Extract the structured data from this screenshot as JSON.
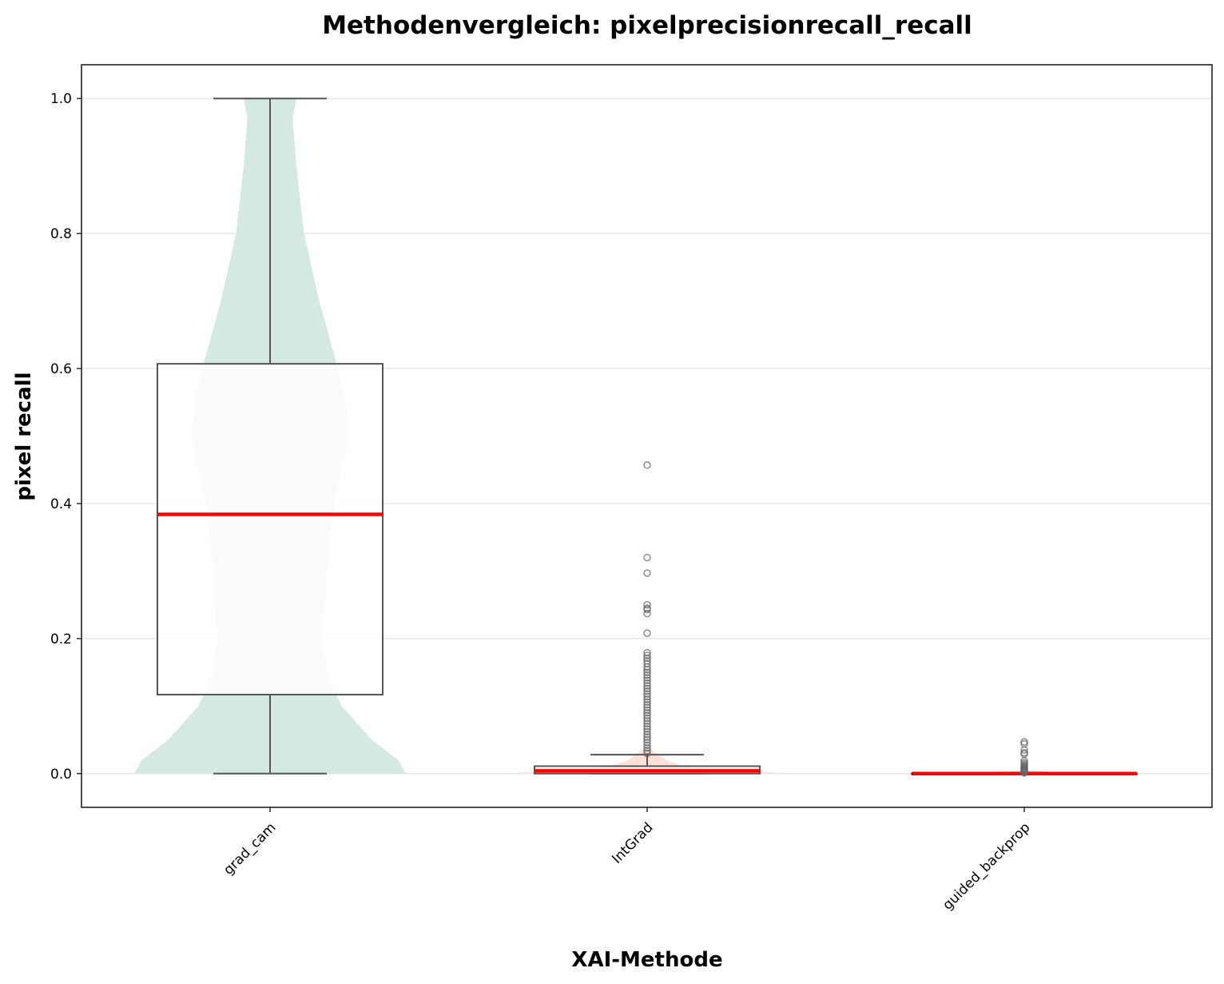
{
  "chart_data": {
    "type": "violin+box",
    "title": "Methodenvergleich: pixelprecisionrecall_recall",
    "xlabel": "XAI-Methode",
    "ylabel": "pixel recall",
    "ylim": [
      -0.05,
      1.05
    ],
    "yticks": [
      "0.0",
      "0.2",
      "0.4",
      "0.6",
      "0.8",
      "1.0"
    ],
    "ytick_values": [
      0.0,
      0.2,
      0.4,
      0.6,
      0.8,
      1.0
    ],
    "grid": "horizontal",
    "categories": [
      "grad_cam",
      "IntGrad",
      "guided_backprop"
    ],
    "colors": {
      "median": "#ff0000",
      "box_edge": "#555555",
      "gridline": "#e6e6e6",
      "violins": [
        "#d4e9e2",
        "#fde0d6",
        "#dfe4ef"
      ],
      "outlier": "#666666"
    },
    "series": [
      {
        "category": "grad_cam",
        "q1": 0.117,
        "median": 0.384,
        "q3": 0.607,
        "whisker_low": 0.0,
        "whisker_high": 1.0,
        "outliers": [],
        "violin": [
          [
            0.0,
            0.36
          ],
          [
            0.02,
            0.34
          ],
          [
            0.05,
            0.27
          ],
          [
            0.1,
            0.19
          ],
          [
            0.15,
            0.15
          ],
          [
            0.2,
            0.14
          ],
          [
            0.3,
            0.15
          ],
          [
            0.4,
            0.17
          ],
          [
            0.5,
            0.21
          ],
          [
            0.55,
            0.2
          ],
          [
            0.6,
            0.18
          ],
          [
            0.7,
            0.13
          ],
          [
            0.8,
            0.09
          ],
          [
            0.9,
            0.07
          ],
          [
            0.97,
            0.06
          ],
          [
            1.0,
            0.07
          ]
        ]
      },
      {
        "category": "IntGrad",
        "q1": 0.0,
        "median": 0.004,
        "q3": 0.011,
        "whisker_low": 0.0,
        "whisker_high": 0.028,
        "outliers": [
          0.457,
          0.32,
          0.297,
          0.25,
          0.245,
          0.243,
          0.237,
          0.208,
          0.179,
          0.175,
          0.171,
          0.167,
          0.163,
          0.158,
          0.154,
          0.15,
          0.146,
          0.142,
          0.138,
          0.134,
          0.13,
          0.126,
          0.122,
          0.118,
          0.114,
          0.11,
          0.106,
          0.102,
          0.098,
          0.094,
          0.09,
          0.086,
          0.082,
          0.078,
          0.074,
          0.07,
          0.066,
          0.062,
          0.058,
          0.054,
          0.05,
          0.046,
          0.042,
          0.038,
          0.034,
          0.03
        ],
        "violin": [
          [
            0.0,
            0.37
          ],
          [
            0.003,
            0.3
          ],
          [
            0.007,
            0.16
          ],
          [
            0.012,
            0.09
          ],
          [
            0.02,
            0.05
          ],
          [
            0.03,
            0.025
          ],
          [
            0.04,
            0.0
          ]
        ]
      },
      {
        "category": "guided_backprop",
        "q1": 0.0,
        "median": 0.0,
        "q3": 0.0,
        "whisker_low": 0.0,
        "whisker_high": 0.0,
        "outliers": [
          0.047,
          0.044,
          0.035,
          0.031,
          0.029,
          0.019,
          0.016,
          0.014,
          0.012,
          0.011,
          0.009,
          0.008,
          0.007,
          0.006,
          0.005,
          0.004,
          0.003,
          0.002,
          0.001
        ],
        "violin": [
          [
            0.0,
            0.28
          ],
          [
            0.002,
            0.1
          ],
          [
            0.005,
            0.0
          ]
        ]
      }
    ]
  }
}
